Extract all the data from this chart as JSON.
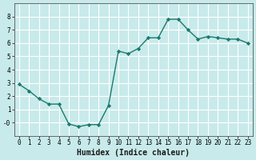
{
  "x": [
    0,
    1,
    2,
    3,
    4,
    5,
    6,
    7,
    8,
    9,
    10,
    11,
    12,
    13,
    14,
    15,
    16,
    17,
    18,
    19,
    20,
    21,
    22,
    23
  ],
  "y": [
    2.9,
    2.4,
    1.8,
    1.4,
    1.4,
    -0.1,
    -0.3,
    -0.15,
    -0.15,
    1.3,
    5.4,
    5.2,
    5.6,
    6.4,
    6.4,
    7.8,
    7.8,
    7.0,
    6.3,
    6.5,
    6.4,
    6.3,
    6.3,
    6.0
  ],
  "xlabel": "Humidex (Indice chaleur)",
  "xlim": [
    -0.5,
    23.5
  ],
  "ylim": [
    -1.0,
    9.0
  ],
  "yticks": [
    0,
    1,
    2,
    3,
    4,
    5,
    6,
    7,
    8
  ],
  "ytick_labels": [
    "-0",
    "1",
    "2",
    "3",
    "4",
    "5",
    "6",
    "7",
    "8"
  ],
  "xticks": [
    0,
    1,
    2,
    3,
    4,
    5,
    6,
    7,
    8,
    9,
    10,
    11,
    12,
    13,
    14,
    15,
    16,
    17,
    18,
    19,
    20,
    21,
    22,
    23
  ],
  "line_color": "#1a7a6e",
  "marker": "D",
  "marker_size": 2.2,
  "bg_color": "#c8eaea",
  "grid_color": "#ffffff",
  "line_width": 1.0,
  "tick_fontsize": 5.5,
  "xlabel_fontsize": 7.0
}
